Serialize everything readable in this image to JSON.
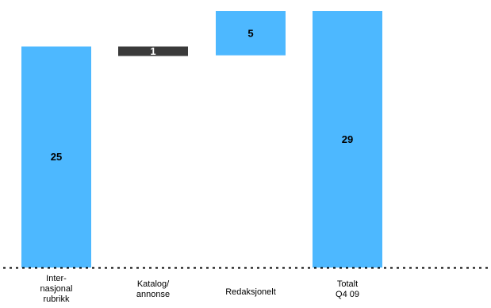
{
  "chart_data": {
    "type": "bar",
    "subtype": "waterfall",
    "categories": [
      [
        "Inter-",
        "nasjonal",
        "rubrikk"
      ],
      [
        "Katalog/",
        "annonse"
      ],
      [
        "Redaksjonelt"
      ],
      [
        "Totalt",
        "Q4 09"
      ]
    ],
    "values": [
      25,
      -1,
      5,
      29
    ],
    "value_labels": [
      "25",
      "1",
      "5",
      "29"
    ],
    "bar_kinds": [
      "total",
      "decrease",
      "increase",
      "total"
    ],
    "ylim": [
      0,
      29
    ],
    "grid": false,
    "legend": "none",
    "title": "",
    "xlabel": "",
    "ylabel": ""
  },
  "colors": {
    "total": "#4db8ff",
    "increase": "#4db8ff",
    "decrease": "#3a3a3a",
    "label_on_light": "#000000",
    "label_on_dark": "#ffffff",
    "baseline": "#000000"
  }
}
